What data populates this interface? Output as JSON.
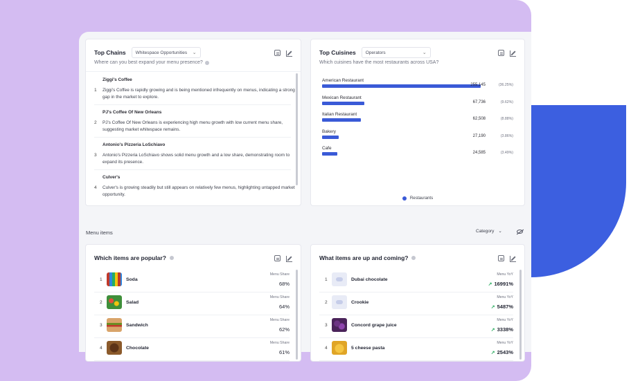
{
  "top_chains": {
    "title": "Top Chains",
    "select_value": "Whitespace Opportunities",
    "subtitle": "Where can you best expand your menu presence?",
    "items": [
      {
        "num": "1",
        "name": "Ziggi's Coffee",
        "desc": "Ziggi's Coffee is rapidly growing and is being mentioned infrequently on menus, indicating a strong gap in the market to explore."
      },
      {
        "num": "2",
        "name": "PJ's Coffee Of New Orleans",
        "desc": "PJ's Coffee Of New Orleans is experiencing high menu growth with low current menu share, suggesting market whitespace remains."
      },
      {
        "num": "3",
        "name": "Antonio's Pizzeria LoSchiavo",
        "desc": "Antonio's Pizzeria LoSchiavo shows solid menu growth and a low share, demonstrating room to expand its presence."
      },
      {
        "num": "4",
        "name": "Culver's",
        "desc": "Culver's is growing steadily but still appears on relatively few menus, highlighting untapped market opportunity."
      }
    ]
  },
  "top_cuisines": {
    "title": "Top Cuisines",
    "select_value": "Operators",
    "subtitle": "Which cuisines have the most restaurants across USA?"
  },
  "chart_data": {
    "type": "bar",
    "orientation": "horizontal",
    "categories": [
      "American Restaurant",
      "Mexican Restaurant",
      "Italian Restaurant",
      "Bakery",
      "Cafe"
    ],
    "series": [
      {
        "name": "Restaurants",
        "values": [
          255145,
          67736,
          62508,
          27190,
          24585
        ]
      }
    ],
    "value_labels": [
      "255,145",
      "67,736",
      "62,508",
      "27,190",
      "24,585"
    ],
    "pct_labels": [
      "(36.25%)",
      "(9.62%)",
      "(8.88%)",
      "(3.86%)",
      "(3.49%)"
    ],
    "legend": "bottom-center",
    "bar_color": "#3a5ad7"
  },
  "menu_items": {
    "section_title": "Menu items",
    "category_label": "Category"
  },
  "popular": {
    "title": "Which items are popular?",
    "metric_label": "Menu Share",
    "items": [
      {
        "num": "1",
        "name": "Soda",
        "value": "68%"
      },
      {
        "num": "2",
        "name": "Salad",
        "value": "64%"
      },
      {
        "num": "3",
        "name": "Sandwich",
        "value": "62%"
      },
      {
        "num": "4",
        "name": "Chocolate",
        "value": "61%"
      }
    ]
  },
  "upcoming": {
    "title": "What items are up and coming?",
    "metric_label": "Menu YoY",
    "items": [
      {
        "num": "1",
        "name": "Dubai chocolate",
        "value": "16991%"
      },
      {
        "num": "2",
        "name": "Crookie",
        "value": "5487%"
      },
      {
        "num": "3",
        "name": "Concord grape juice",
        "value": "3338%"
      },
      {
        "num": "4",
        "name": "5 cheese pasta",
        "value": "2543%"
      }
    ]
  },
  "colors": {
    "accent": "#3a5ad7",
    "purple_bg": "#d4bcf2",
    "blue_shape": "#3c5fe0",
    "trend_up": "#2fae63"
  }
}
